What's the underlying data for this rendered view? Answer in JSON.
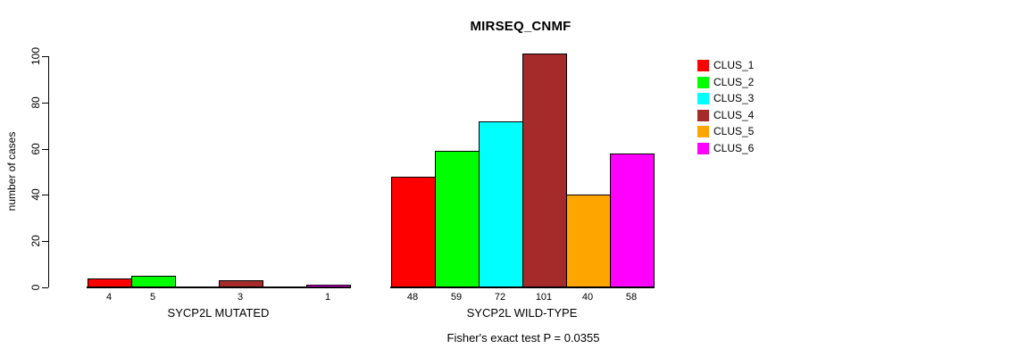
{
  "chart_data": {
    "type": "bar",
    "title": "MIRSEQ_CNMF",
    "ylabel": "number of cases",
    "ylim": [
      0,
      100
    ],
    "yticks": [
      0,
      20,
      40,
      60,
      80,
      100
    ],
    "grid": false,
    "legend_position": "right",
    "legend": [
      {
        "label": "CLUS_1",
        "color": "#FF0000"
      },
      {
        "label": "CLUS_2",
        "color": "#00FF00"
      },
      {
        "label": "CLUS_3",
        "color": "#00FFFF"
      },
      {
        "label": "CLUS_4",
        "color": "#A52A2A"
      },
      {
        "label": "CLUS_5",
        "color": "#FFA500"
      },
      {
        "label": "CLUS_6",
        "color": "#FF00FF"
      }
    ],
    "groups": [
      {
        "label": "SYCP2L MUTATED",
        "values": [
          4,
          5,
          0,
          3,
          0,
          1
        ],
        "bar_labels": [
          "4",
          "5",
          "",
          "3",
          "",
          "1"
        ]
      },
      {
        "label": "SYCP2L WILD-TYPE",
        "values": [
          48,
          59,
          72,
          101,
          40,
          58
        ],
        "bar_labels": [
          "48",
          "59",
          "72",
          "101",
          "40",
          "58"
        ]
      }
    ],
    "annotation": "Fisher's exact test P = 0.0355"
  }
}
